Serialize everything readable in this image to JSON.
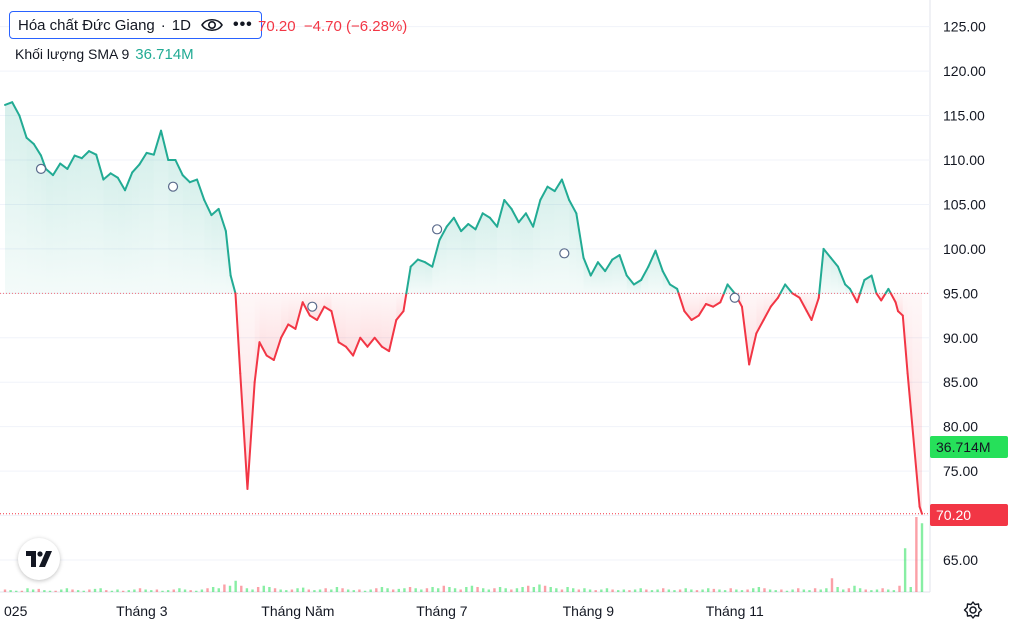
{
  "header": {
    "symbol": "Hóa chất Đức Giang",
    "separator": "·",
    "interval": "1D",
    "price_info": "70.20  −4.70 (−6.28%)",
    "volume_label": "Khối lượng SMA 9",
    "volume_value": "36.714M"
  },
  "badges": {
    "volume": "36.714M",
    "price": "70.20"
  },
  "colors": {
    "up": "#22ab94",
    "down": "#f23645",
    "accent": "#2962ff",
    "volume_badge": "#26e05a"
  },
  "icons": [
    "eye-icon",
    "more-icon",
    "tradingview-logo",
    "gear-icon"
  ],
  "chart_data": {
    "type": "area",
    "baseline": 95.0,
    "last_price": 70.2,
    "ylim": [
      61.4,
      128.0
    ],
    "y_ticks": [
      "125.00",
      "120.00",
      "115.00",
      "110.00",
      "105.00",
      "100.00",
      "95.00",
      "90.00",
      "85.00",
      "80.00",
      "75.00",
      "70.00",
      "65.00"
    ],
    "y_tick_values": [
      125,
      120,
      115,
      110,
      105,
      100,
      95,
      90,
      85,
      80,
      75,
      70,
      65
    ],
    "x_labels": [
      {
        "label": "025",
        "day": 0
      },
      {
        "label": "Tháng 3",
        "day": 57
      },
      {
        "label": "Tháng Năm",
        "day": 122
      },
      {
        "label": "Tháng 7",
        "day": 182
      },
      {
        "label": "Tháng 9",
        "day": 243
      },
      {
        "label": "Tháng 11",
        "day": 304
      }
    ],
    "xlim": [
      0,
      365
    ],
    "series": [
      {
        "points": [
          [
            0,
            116.2
          ],
          [
            3,
            116.5
          ],
          [
            6,
            115
          ],
          [
            9,
            112.5
          ],
          [
            12,
            111.8
          ],
          [
            15,
            110.5
          ],
          [
            17,
            109
          ],
          [
            20,
            108.3
          ],
          [
            23,
            109.6
          ],
          [
            26,
            109
          ],
          [
            29,
            110.5
          ],
          [
            32,
            110.2
          ],
          [
            35,
            111
          ],
          [
            38,
            110.6
          ],
          [
            41,
            107.8
          ],
          [
            44,
            108.5
          ],
          [
            47,
            108
          ],
          [
            50,
            106.6
          ],
          [
            53,
            108.6
          ],
          [
            56,
            109.5
          ],
          [
            59,
            110.8
          ],
          [
            62,
            110.6
          ],
          [
            65,
            113.3
          ],
          [
            68,
            110
          ],
          [
            71,
            110
          ],
          [
            74,
            108.3
          ],
          [
            77,
            107.5
          ],
          [
            80,
            107.8
          ],
          [
            83,
            105.5
          ],
          [
            86,
            103.8
          ],
          [
            89,
            104.5
          ],
          [
            92,
            102
          ],
          [
            94,
            97
          ],
          [
            96,
            95
          ],
          [
            98,
            86
          ],
          [
            101,
            73
          ],
          [
            104,
            85
          ],
          [
            106,
            89.5
          ],
          [
            109,
            88
          ],
          [
            112,
            87.5
          ],
          [
            115,
            90
          ],
          [
            118,
            91.5
          ],
          [
            121,
            91
          ],
          [
            124,
            94
          ],
          [
            127,
            92.5
          ],
          [
            130,
            92
          ],
          [
            133,
            93.5
          ],
          [
            136,
            93
          ],
          [
            139,
            89.5
          ],
          [
            142,
            89
          ],
          [
            145,
            88
          ],
          [
            148,
            90
          ],
          [
            151,
            89
          ],
          [
            154,
            90
          ],
          [
            157,
            89
          ],
          [
            160,
            88.5
          ],
          [
            163,
            92
          ],
          [
            166,
            93
          ],
          [
            169,
            98
          ],
          [
            172,
            98.8
          ],
          [
            175,
            98.5
          ],
          [
            178,
            98
          ],
          [
            181,
            101
          ],
          [
            184,
            102.5
          ],
          [
            187,
            103.5
          ],
          [
            190,
            102
          ],
          [
            193,
            102.8
          ],
          [
            196,
            102.2
          ],
          [
            199,
            104
          ],
          [
            202,
            103.5
          ],
          [
            205,
            102.5
          ],
          [
            208,
            105.5
          ],
          [
            211,
            104.5
          ],
          [
            214,
            103
          ],
          [
            217,
            104
          ],
          [
            220,
            102.5
          ],
          [
            223,
            105.5
          ],
          [
            226,
            107
          ],
          [
            229,
            106.5
          ],
          [
            232,
            107.8
          ],
          [
            235,
            105.5
          ],
          [
            238,
            104
          ],
          [
            241,
            99
          ],
          [
            244,
            97
          ],
          [
            247,
            98.5
          ],
          [
            250,
            97.5
          ],
          [
            253,
            98.8
          ],
          [
            256,
            99.3
          ],
          [
            259,
            97
          ],
          [
            262,
            96
          ],
          [
            265,
            96.5
          ],
          [
            268,
            98
          ],
          [
            271,
            99.8
          ],
          [
            274,
            97.5
          ],
          [
            277,
            96
          ],
          [
            280,
            95.5
          ],
          [
            283,
            93
          ],
          [
            286,
            92
          ],
          [
            289,
            92.5
          ],
          [
            292,
            93.8
          ],
          [
            295,
            93.5
          ],
          [
            298,
            94
          ],
          [
            301,
            96
          ],
          [
            304,
            95
          ],
          [
            307,
            93.5
          ],
          [
            310,
            87
          ],
          [
            313,
            90.5
          ],
          [
            316,
            92
          ],
          [
            319,
            93.5
          ],
          [
            322,
            94.5
          ],
          [
            325,
            96
          ],
          [
            328,
            95
          ],
          [
            331,
            94.5
          ],
          [
            334,
            93
          ],
          [
            336,
            92
          ],
          [
            339,
            94.5
          ],
          [
            341,
            100
          ],
          [
            344,
            99
          ],
          [
            347,
            98
          ],
          [
            350,
            96
          ],
          [
            352,
            95.5
          ],
          [
            355,
            94
          ],
          [
            358,
            96.5
          ],
          [
            361,
            97
          ],
          [
            363,
            95
          ],
          [
            365,
            94.2
          ],
          [
            368,
            95.5
          ],
          [
            371,
            94
          ],
          [
            372,
            93
          ],
          [
            374,
            92.5
          ],
          [
            376,
            86
          ],
          [
            378,
            80
          ],
          [
            381,
            71
          ],
          [
            382,
            70.2
          ]
        ]
      }
    ],
    "markers": [
      [
        15,
        109
      ],
      [
        70,
        107
      ],
      [
        128,
        93.5
      ],
      [
        180,
        102.2
      ],
      [
        233,
        99.5
      ],
      [
        304,
        94.5
      ]
    ],
    "volumes": [
      2,
      1.5,
      1,
      1,
      3,
      2,
      2.5,
      1.5,
      1,
      1,
      2,
      3,
      2,
      1.5,
      1,
      2,
      2.5,
      3,
      1.5,
      1,
      2,
      1,
      1.5,
      2,
      3,
      2,
      1.5,
      2,
      1,
      1.5,
      2,
      3,
      2,
      1.5,
      1,
      2,
      3,
      4,
      3,
      6,
      5,
      9,
      5,
      3,
      2,
      4,
      5,
      4,
      3,
      2,
      1.5,
      2,
      3,
      3.5,
      2,
      1.5,
      2,
      3,
      2,
      4,
      3,
      2,
      1.5,
      2,
      1,
      2,
      3,
      4,
      3,
      2,
      2.5,
      3,
      4,
      3,
      2,
      3,
      4,
      3,
      5,
      4,
      3,
      2,
      4,
      5,
      4,
      3,
      2,
      3,
      4,
      3,
      2,
      3,
      4,
      5,
      4,
      6,
      5,
      4,
      3,
      2,
      4,
      3,
      2,
      3,
      2,
      1.5,
      2,
      3,
      2,
      1.5,
      2,
      1.5,
      2,
      3,
      2,
      1.5,
      2,
      3,
      2,
      1.5,
      2,
      3,
      2,
      1.5,
      2,
      3,
      2.5,
      2,
      1.5,
      3,
      2,
      1.5,
      2,
      3,
      4,
      3,
      2,
      1.5,
      2,
      1,
      2,
      3,
      2,
      1.5,
      3,
      2,
      3,
      11,
      4,
      2,
      3,
      5,
      3,
      2,
      1.5,
      2,
      3,
      2,
      1.5,
      5,
      35,
      4,
      60,
      55
    ]
  }
}
